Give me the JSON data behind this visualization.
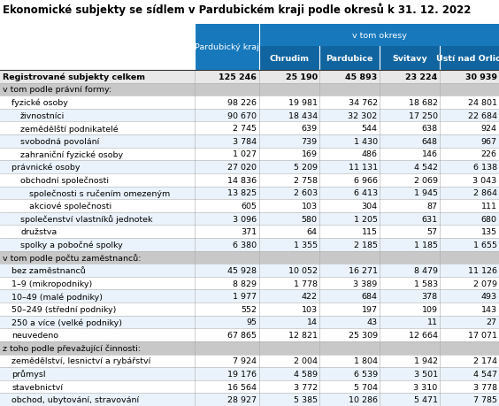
{
  "title": "Ekonomické subjekty se sídlem v Pardubickém kraji podle okresů k 31. 12. 2022",
  "rows": [
    {
      "label": "Registrované subjekty celkem",
      "indent": 0,
      "bold": true,
      "values": [
        "125 246",
        "25 190",
        "45 893",
        "23 224",
        "30 939"
      ],
      "section": false
    },
    {
      "label": "v tom podle právní formy:",
      "indent": 0,
      "bold": false,
      "values": [
        "",
        "",
        "",
        "",
        ""
      ],
      "section": true
    },
    {
      "label": "fyzické osoby",
      "indent": 1,
      "bold": false,
      "values": [
        "98 226",
        "19 981",
        "34 762",
        "18 682",
        "24 801"
      ],
      "section": false
    },
    {
      "label": "živnostníci",
      "indent": 2,
      "bold": false,
      "values": [
        "90 670",
        "18 434",
        "32 302",
        "17 250",
        "22 684"
      ],
      "section": false
    },
    {
      "label": "zemědělští podnikatelé",
      "indent": 2,
      "bold": false,
      "values": [
        "2 745",
        "639",
        "544",
        "638",
        "924"
      ],
      "section": false
    },
    {
      "label": "svobodná povolání",
      "indent": 2,
      "bold": false,
      "values": [
        "3 784",
        "739",
        "1 430",
        "648",
        "967"
      ],
      "section": false
    },
    {
      "label": "zahraniční fyzické osoby",
      "indent": 2,
      "bold": false,
      "values": [
        "1 027",
        "169",
        "486",
        "146",
        "226"
      ],
      "section": false
    },
    {
      "label": "právnické osoby",
      "indent": 1,
      "bold": false,
      "values": [
        "27 020",
        "5 209",
        "11 131",
        "4 542",
        "6 138"
      ],
      "section": false
    },
    {
      "label": "obchodní společnosti",
      "indent": 2,
      "bold": false,
      "values": [
        "14 836",
        "2 758",
        "6 966",
        "2 069",
        "3 043"
      ],
      "section": false
    },
    {
      "label": "společnosti s ručením omezeným",
      "indent": 3,
      "bold": false,
      "values": [
        "13 825",
        "2 603",
        "6 413",
        "1 945",
        "2 864"
      ],
      "section": false
    },
    {
      "label": "akciové společnosti",
      "indent": 3,
      "bold": false,
      "values": [
        "605",
        "103",
        "304",
        "87",
        "111"
      ],
      "section": false
    },
    {
      "label": "společenství vlastníků jednotek",
      "indent": 2,
      "bold": false,
      "values": [
        "3 096",
        "580",
        "1 205",
        "631",
        "680"
      ],
      "section": false
    },
    {
      "label": "družstva",
      "indent": 2,
      "bold": false,
      "values": [
        "371",
        "64",
        "115",
        "57",
        "135"
      ],
      "section": false
    },
    {
      "label": "spolky a pobočné spolky",
      "indent": 2,
      "bold": false,
      "values": [
        "6 380",
        "1 355",
        "2 185",
        "1 185",
        "1 655"
      ],
      "section": false
    },
    {
      "label": "v tom podle počtu zaměstnanců:",
      "indent": 0,
      "bold": false,
      "values": [
        "",
        "",
        "",
        "",
        ""
      ],
      "section": true
    },
    {
      "label": "bez zaměstnanců",
      "indent": 1,
      "bold": false,
      "values": [
        "45 928",
        "10 052",
        "16 271",
        "8 479",
        "11 126"
      ],
      "section": false
    },
    {
      "label": "1–9 (mikropodniky)",
      "indent": 1,
      "bold": false,
      "values": [
        "8 829",
        "1 778",
        "3 389",
        "1 583",
        "2 079"
      ],
      "section": false
    },
    {
      "label": "10–49 (malé podniky)",
      "indent": 1,
      "bold": false,
      "values": [
        "1 977",
        "422",
        "684",
        "378",
        "493"
      ],
      "section": false
    },
    {
      "label": "50–249 (střední podniky)",
      "indent": 1,
      "bold": false,
      "values": [
        "552",
        "103",
        "197",
        "109",
        "143"
      ],
      "section": false
    },
    {
      "label": "250 a více (velké podniky)",
      "indent": 1,
      "bold": false,
      "values": [
        "95",
        "14",
        "43",
        "11",
        "27"
      ],
      "section": false
    },
    {
      "label": "neuvedeno",
      "indent": 1,
      "bold": false,
      "values": [
        "67 865",
        "12 821",
        "25 309",
        "12 664",
        "17 071"
      ],
      "section": false
    },
    {
      "label": "z toho podle převažující činnosti:",
      "indent": 0,
      "bold": false,
      "values": [
        "",
        "",
        "",
        "",
        ""
      ],
      "section": true
    },
    {
      "label": "zemědělství, lesnictví a rybářství",
      "indent": 1,
      "bold": false,
      "values": [
        "7 924",
        "2 004",
        "1 804",
        "1 942",
        "2 174"
      ],
      "section": false
    },
    {
      "label": "průmysl",
      "indent": 1,
      "bold": false,
      "values": [
        "19 176",
        "4 589",
        "6 539",
        "3 501",
        "4 547"
      ],
      "section": false
    },
    {
      "label": "stavebnictví",
      "indent": 1,
      "bold": false,
      "values": [
        "16 564",
        "3 772",
        "5 704",
        "3 310",
        "3 778"
      ],
      "section": false
    },
    {
      "label": "obchod, ubytování, stravování",
      "indent": 1,
      "bold": false,
      "values": [
        "28 927",
        "5 385",
        "10 286",
        "5 471",
        "7 785"
      ],
      "section": false
    }
  ],
  "header_blue": "#1779bc",
  "header_dark_blue": "#1065a0",
  "section_bg": "#c8c8c8",
  "white": "#ffffff",
  "light_blue_row": "#ddeeff",
  "bold_row_bg": "#e8e8e8",
  "col_line_color": "#ffffff",
  "row_line_color": "#b0b0b0",
  "title_fontsize": 8.5,
  "label_fontsize": 6.8,
  "value_fontsize": 6.8
}
